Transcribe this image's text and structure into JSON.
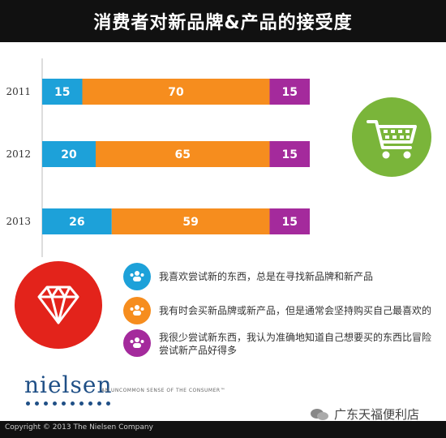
{
  "title": "消费者对新品牌&产品的接受度",
  "chart_data": {
    "type": "bar",
    "orientation": "horizontal",
    "stacked": true,
    "percent": true,
    "categories": [
      "2011",
      "2012",
      "2013"
    ],
    "series": [
      {
        "values": [
          15,
          20,
          26
        ],
        "color": "#1da1d9"
      },
      {
        "values": [
          70,
          65,
          59
        ],
        "color": "#f68d1e"
      },
      {
        "values": [
          15,
          15,
          15
        ],
        "color": "#a42a9c"
      }
    ],
    "xlim": [
      0,
      100
    ],
    "grid": false,
    "legend": "bottom"
  },
  "legend": {
    "items": [
      {
        "text": "我喜欢尝试新的东西，总是在寻找新品牌和新产品",
        "color": "#1da1d9",
        "icon": "people-icon"
      },
      {
        "text": "我有时会买新品牌或新产品，但是通常会坚持购买自己最喜欢的",
        "color": "#f68d1e",
        "icon": "people-icon"
      },
      {
        "text": "我很少尝试新东西，我认为准确地知道自己想要买的东西比冒险尝试新产品好得多",
        "color": "#a42a9c",
        "icon": "people-icon"
      }
    ]
  },
  "icons": {
    "cart": "shopping-cart-icon",
    "diamond": "diamond-icon",
    "cart_bg": "#7ab53a",
    "diamond_bg": "#e3231b"
  },
  "branding": {
    "logo": "nielsen",
    "tagline": "AN UNCOMMON SENSE OF THE CONSUMER™",
    "footer": "Copyright © 2013 The Nielsen Company"
  },
  "watermark": {
    "text": "广东天福便利店"
  }
}
